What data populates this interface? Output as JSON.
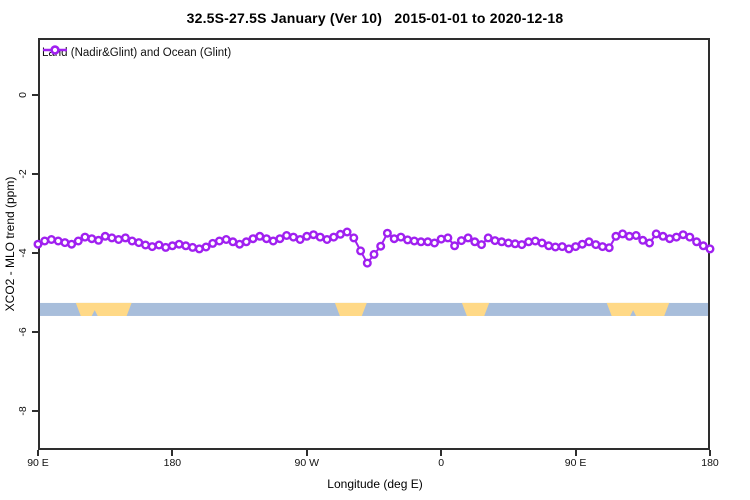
{
  "title": "32.5S-27.5S January (Ver 10)   2015-01-01 to 2020-12-18",
  "legend": {
    "label": "Land (Nadir&Glint) and Ocean (Glint)",
    "marker": "open-circle-on-line",
    "color": "#A020F0"
  },
  "colors": {
    "series": "#A020F0",
    "axis": "#2E2E2E",
    "ocean_band": "#A8BEDB",
    "land_band": "#FFD987"
  },
  "chart_data": {
    "type": "line",
    "title": "32.5S-27.5S January (Ver 10)   2015-01-01 to 2020-12-18",
    "xlabel": "Longitude (deg E)",
    "ylabel": "XCO2 - MLO trend (ppm)",
    "xlim": [
      90,
      540
    ],
    "ylim": [
      -9.0,
      1.45
    ],
    "grid": false,
    "legend_position": "top-left-inside",
    "x_ticks": [
      {
        "value": 90,
        "label": "90 E"
      },
      {
        "value": 180,
        "label": "180"
      },
      {
        "value": 270,
        "label": "90 W"
      },
      {
        "value": 360,
        "label": "0"
      },
      {
        "value": 450,
        "label": "90 E"
      },
      {
        "value": 540,
        "label": "180"
      }
    ],
    "y_ticks": [
      {
        "value": 0,
        "label": "0"
      },
      {
        "value": -2,
        "label": "-2"
      },
      {
        "value": -4,
        "label": "-4"
      },
      {
        "value": -6,
        "label": "-6"
      },
      {
        "value": -8,
        "label": "-8"
      }
    ],
    "x_axis_note": "longitude wraps: 90E eastward through 180, 90W, 0, back to 90E and 180",
    "series": [
      {
        "name": "Land (Nadir&Glint) and Ocean (Glint)",
        "color": "#A020F0",
        "marker": "open-circle",
        "x_start": 90,
        "x_step": 4.5,
        "values": [
          -3.78,
          -3.7,
          -3.66,
          -3.7,
          -3.74,
          -3.78,
          -3.7,
          -3.6,
          -3.64,
          -3.68,
          -3.58,
          -3.62,
          -3.66,
          -3.62,
          -3.7,
          -3.74,
          -3.8,
          -3.84,
          -3.8,
          -3.86,
          -3.82,
          -3.78,
          -3.82,
          -3.86,
          -3.9,
          -3.85,
          -3.76,
          -3.7,
          -3.66,
          -3.72,
          -3.78,
          -3.72,
          -3.64,
          -3.58,
          -3.64,
          -3.7,
          -3.64,
          -3.56,
          -3.6,
          -3.66,
          -3.58,
          -3.54,
          -3.6,
          -3.66,
          -3.6,
          -3.53,
          -3.47,
          -3.62,
          -3.95,
          -4.26,
          -4.04,
          -3.83,
          -3.5,
          -3.64,
          -3.6,
          -3.67,
          -3.7,
          -3.72,
          -3.72,
          -3.75,
          -3.65,
          -3.62,
          -3.82,
          -3.69,
          -3.62,
          -3.72,
          -3.79,
          -3.62,
          -3.69,
          -3.72,
          -3.75,
          -3.77,
          -3.79,
          -3.72,
          -3.7,
          -3.75,
          -3.82,
          -3.85,
          -3.84,
          -3.9,
          -3.84,
          -3.78,
          -3.72,
          -3.79,
          -3.84,
          -3.87,
          -3.58,
          -3.52,
          -3.58,
          -3.56,
          -3.68,
          -3.75,
          -3.52,
          -3.58,
          -3.64,
          -3.6,
          -3.54,
          -3.6,
          -3.72,
          -3.82,
          -3.9
        ]
      }
    ],
    "coverage_band": {
      "description": "horizontal land/ocean indicator strip",
      "y_top": -5.27,
      "y_bottom": -5.6,
      "ocean_color": "#A8BEDB",
      "land_color": "#FFD987",
      "land_segments_deg": [
        {
          "start": 116,
          "end": 152,
          "notch": 128
        },
        {
          "start": 289.5,
          "end": 309.5
        },
        {
          "start": 374.5,
          "end": 391.5
        },
        {
          "start": 471.5,
          "end": 512,
          "notch": 488.5
        }
      ]
    }
  }
}
